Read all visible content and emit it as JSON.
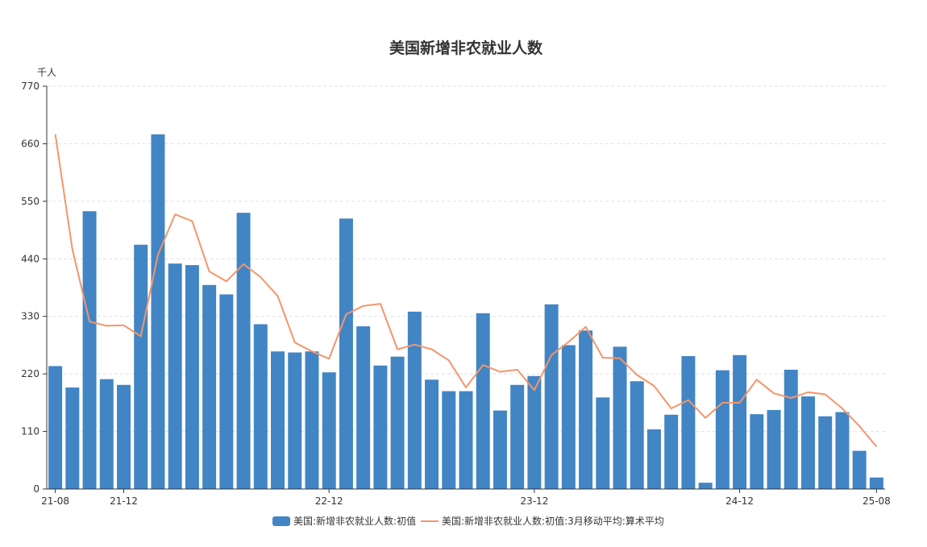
{
  "chart_data": {
    "type": "bar",
    "title": "美国新增非农就业人数",
    "y_unit": "千人",
    "ylim": [
      0,
      770
    ],
    "y_ticks": [
      "0",
      "110",
      "220",
      "330",
      "440",
      "550",
      "660",
      "770"
    ],
    "x_ticks": [
      {
        "index": 0,
        "label": "21-08"
      },
      {
        "index": 4,
        "label": "21-12"
      },
      {
        "index": 16,
        "label": "22-12"
      },
      {
        "index": 28,
        "label": "23-12"
      },
      {
        "index": 40,
        "label": "24-12"
      },
      {
        "index": 48,
        "label": "25-08"
      }
    ],
    "categories": [
      "21-08",
      "21-09",
      "21-10",
      "21-11",
      "21-12",
      "22-01",
      "22-02",
      "22-03",
      "22-04",
      "22-05",
      "22-06",
      "22-07",
      "22-08",
      "22-09",
      "22-10",
      "22-11",
      "22-12",
      "23-01",
      "23-02",
      "23-03",
      "23-04",
      "23-05",
      "23-06",
      "23-07",
      "23-08",
      "23-09",
      "23-10",
      "23-11",
      "23-12",
      "24-01",
      "24-02",
      "24-03",
      "24-04",
      "24-05",
      "24-06",
      "24-07",
      "24-08",
      "24-09",
      "24-10",
      "24-11",
      "24-12",
      "25-01",
      "25-02",
      "25-03",
      "25-04",
      "25-05",
      "25-06",
      "25-07",
      "25-08"
    ],
    "series": [
      {
        "name": "美国:新增非农就业人数:初值",
        "type": "bar",
        "color": "#4285c4",
        "values": [
          235,
          194,
          531,
          210,
          199,
          467,
          678,
          431,
          428,
          390,
          372,
          528,
          315,
          263,
          261,
          263,
          223,
          517,
          311,
          236,
          253,
          339,
          209,
          187,
          187,
          336,
          150,
          199,
          216,
          353,
          275,
          303,
          175,
          272,
          206,
          114,
          142,
          254,
          12,
          227,
          256,
          143,
          151,
          228,
          177,
          139,
          147,
          73,
          22
        ]
      },
      {
        "name": "美国:新增非农就业人数:初值:3月移动平均:算术平均",
        "type": "line",
        "color": "#f4956a",
        "values": [
          678,
          458,
          320,
          312,
          313,
          292,
          448,
          525,
          512,
          416,
          397,
          430,
          405,
          369,
          280,
          263,
          249,
          334,
          350,
          354,
          267,
          276,
          267,
          246,
          194,
          237,
          224,
          228,
          189,
          256,
          281,
          310,
          251,
          250,
          218,
          197,
          154,
          170,
          136,
          165,
          165,
          209,
          183,
          174,
          185,
          181,
          154,
          120,
          81
        ]
      }
    ],
    "legend_position": "bottom-center",
    "grid": "horizontal-dashed"
  }
}
